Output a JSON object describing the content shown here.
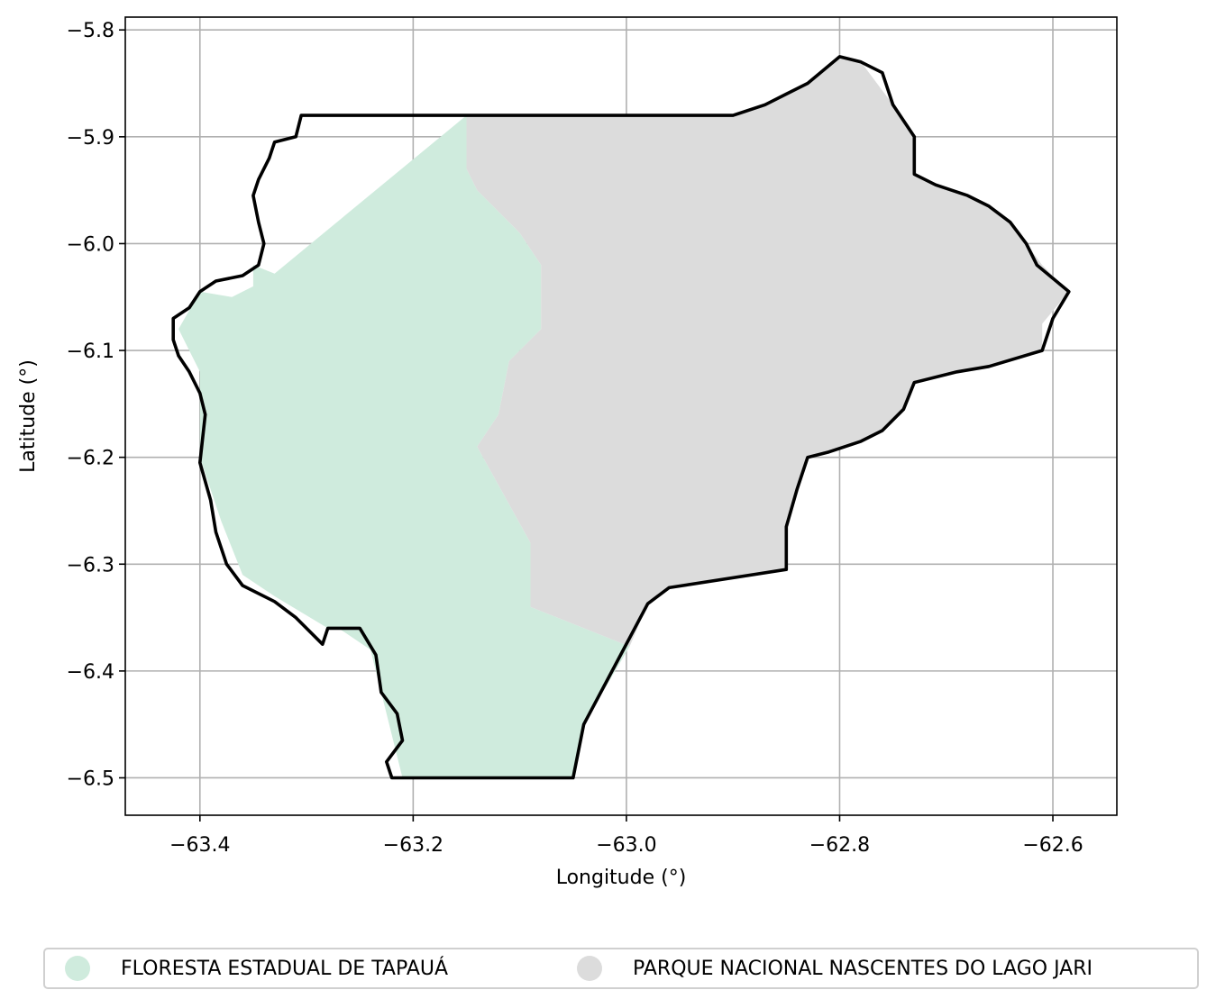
{
  "chart_data": {
    "type": "map",
    "xlabel": "Longitude (°)",
    "ylabel": "Latitude (°)",
    "xlim": [
      -63.47,
      -62.54
    ],
    "ylim": [
      -6.535,
      -5.788
    ],
    "x_ticks": [
      -63.4,
      -63.2,
      -63.0,
      -62.8,
      -62.6
    ],
    "x_tick_labels": [
      "−63.4",
      "−63.2",
      "−63.0",
      "−62.8",
      "−62.6"
    ],
    "y_ticks": [
      -5.8,
      -5.9,
      -6.0,
      -6.1,
      -6.2,
      -6.3,
      -6.4,
      -6.5
    ],
    "y_tick_labels": [
      "−5.8",
      "−5.9",
      "−6.0",
      "−6.1",
      "−6.2",
      "−6.3",
      "−6.4",
      "−6.5"
    ],
    "grid": true,
    "legend_position": "bottom",
    "regions": [
      {
        "name": "FLORESTA ESTADUAL DE TAPAUÁ",
        "color": "#cfebdd",
        "polygon": [
          [
            -63.15,
            -5.88
          ],
          [
            -63.33,
            -6.028
          ],
          [
            -63.35,
            -6.02
          ],
          [
            -63.35,
            -6.04
          ],
          [
            -63.37,
            -6.05
          ],
          [
            -63.4,
            -6.045
          ],
          [
            -63.42,
            -6.08
          ],
          [
            -63.4,
            -6.12
          ],
          [
            -63.4,
            -6.2
          ],
          [
            -63.38,
            -6.26
          ],
          [
            -63.36,
            -6.31
          ],
          [
            -63.33,
            -6.33
          ],
          [
            -63.28,
            -6.36
          ],
          [
            -63.27,
            -6.36
          ],
          [
            -63.24,
            -6.38
          ],
          [
            -63.23,
            -6.42
          ],
          [
            -63.22,
            -6.46
          ],
          [
            -63.21,
            -6.5
          ],
          [
            -63.05,
            -6.5
          ],
          [
            -63.04,
            -6.45
          ],
          [
            -62.997,
            -6.377
          ],
          [
            -63.09,
            -6.34
          ],
          [
            -63.09,
            -6.28
          ],
          [
            -63.14,
            -6.19
          ],
          [
            -63.12,
            -6.16
          ],
          [
            -63.11,
            -6.11
          ],
          [
            -63.08,
            -6.08
          ],
          [
            -63.08,
            -6.02
          ],
          [
            -63.1,
            -5.99
          ],
          [
            -63.12,
            -5.97
          ],
          [
            -63.14,
            -5.95
          ],
          [
            -63.15,
            -5.93
          ],
          [
            -63.15,
            -5.88
          ]
        ]
      },
      {
        "name": "PARQUE NACIONAL NASCENTES DO LAGO JARI",
        "color": "#dcdcdc",
        "polygon": [
          [
            -63.15,
            -5.88
          ],
          [
            -62.9,
            -5.88
          ],
          [
            -62.87,
            -5.87
          ],
          [
            -62.85,
            -5.86
          ],
          [
            -62.83,
            -5.85
          ],
          [
            -62.8,
            -5.825
          ],
          [
            -62.78,
            -5.83
          ],
          [
            -62.75,
            -5.87
          ],
          [
            -62.73,
            -5.9
          ],
          [
            -62.73,
            -5.935
          ],
          [
            -62.71,
            -5.945
          ],
          [
            -62.66,
            -5.965
          ],
          [
            -62.64,
            -5.98
          ],
          [
            -62.625,
            -6.0
          ],
          [
            -62.61,
            -6.02
          ],
          [
            -62.585,
            -6.045
          ],
          [
            -62.61,
            -6.075
          ],
          [
            -62.61,
            -6.1
          ],
          [
            -62.66,
            -6.115
          ],
          [
            -62.69,
            -6.12
          ],
          [
            -62.73,
            -6.13
          ],
          [
            -62.74,
            -6.155
          ],
          [
            -62.76,
            -6.175
          ],
          [
            -62.78,
            -6.185
          ],
          [
            -62.81,
            -6.195
          ],
          [
            -62.83,
            -6.2
          ],
          [
            -62.84,
            -6.23
          ],
          [
            -62.85,
            -6.265
          ],
          [
            -62.85,
            -6.305
          ],
          [
            -62.96,
            -6.322
          ],
          [
            -62.98,
            -6.337
          ],
          [
            -62.997,
            -6.377
          ],
          [
            -63.09,
            -6.34
          ],
          [
            -63.09,
            -6.28
          ],
          [
            -63.14,
            -6.19
          ],
          [
            -63.12,
            -6.16
          ],
          [
            -63.11,
            -6.11
          ],
          [
            -63.08,
            -6.08
          ],
          [
            -63.08,
            -6.02
          ],
          [
            -63.1,
            -5.99
          ],
          [
            -63.12,
            -5.97
          ],
          [
            -63.14,
            -5.95
          ],
          [
            -63.15,
            -5.93
          ],
          [
            -63.15,
            -5.88
          ]
        ]
      }
    ],
    "outline": [
      [
        -63.305,
        -5.88
      ],
      [
        -62.9,
        -5.88
      ],
      [
        -62.87,
        -5.87
      ],
      [
        -62.85,
        -5.86
      ],
      [
        -62.83,
        -5.85
      ],
      [
        -62.8,
        -5.825
      ],
      [
        -62.78,
        -5.83
      ],
      [
        -62.76,
        -5.84
      ],
      [
        -62.75,
        -5.87
      ],
      [
        -62.73,
        -5.9
      ],
      [
        -62.73,
        -5.935
      ],
      [
        -62.71,
        -5.945
      ],
      [
        -62.68,
        -5.955
      ],
      [
        -62.66,
        -5.965
      ],
      [
        -62.64,
        -5.98
      ],
      [
        -62.625,
        -6.0
      ],
      [
        -62.615,
        -6.02
      ],
      [
        -62.585,
        -6.045
      ],
      [
        -62.6,
        -6.07
      ],
      [
        -62.61,
        -6.1
      ],
      [
        -62.66,
        -6.115
      ],
      [
        -62.69,
        -6.12
      ],
      [
        -62.73,
        -6.13
      ],
      [
        -62.74,
        -6.155
      ],
      [
        -62.76,
        -6.175
      ],
      [
        -62.78,
        -6.185
      ],
      [
        -62.81,
        -6.195
      ],
      [
        -62.83,
        -6.2
      ],
      [
        -62.84,
        -6.23
      ],
      [
        -62.85,
        -6.265
      ],
      [
        -62.85,
        -6.305
      ],
      [
        -62.96,
        -6.322
      ],
      [
        -62.98,
        -6.337
      ],
      [
        -63.04,
        -6.45
      ],
      [
        -63.05,
        -6.5
      ],
      [
        -63.22,
        -6.5
      ],
      [
        -63.225,
        -6.485
      ],
      [
        -63.21,
        -6.465
      ],
      [
        -63.215,
        -6.44
      ],
      [
        -63.23,
        -6.42
      ],
      [
        -63.235,
        -6.385
      ],
      [
        -63.25,
        -6.36
      ],
      [
        -63.28,
        -6.36
      ],
      [
        -63.285,
        -6.375
      ],
      [
        -63.31,
        -6.35
      ],
      [
        -63.33,
        -6.335
      ],
      [
        -63.36,
        -6.32
      ],
      [
        -63.375,
        -6.3
      ],
      [
        -63.385,
        -6.27
      ],
      [
        -63.39,
        -6.24
      ],
      [
        -63.4,
        -6.205
      ],
      [
        -63.395,
        -6.16
      ],
      [
        -63.4,
        -6.14
      ],
      [
        -63.41,
        -6.12
      ],
      [
        -63.42,
        -6.105
      ],
      [
        -63.425,
        -6.09
      ],
      [
        -63.425,
        -6.07
      ],
      [
        -63.41,
        -6.06
      ],
      [
        -63.4,
        -6.045
      ],
      [
        -63.385,
        -6.035
      ],
      [
        -63.36,
        -6.03
      ],
      [
        -63.345,
        -6.02
      ],
      [
        -63.34,
        -6.0
      ],
      [
        -63.345,
        -5.98
      ],
      [
        -63.35,
        -5.955
      ],
      [
        -63.345,
        -5.94
      ],
      [
        -63.335,
        -5.92
      ],
      [
        -63.33,
        -5.905
      ],
      [
        -63.31,
        -5.9
      ],
      [
        -63.305,
        -5.88
      ]
    ]
  }
}
